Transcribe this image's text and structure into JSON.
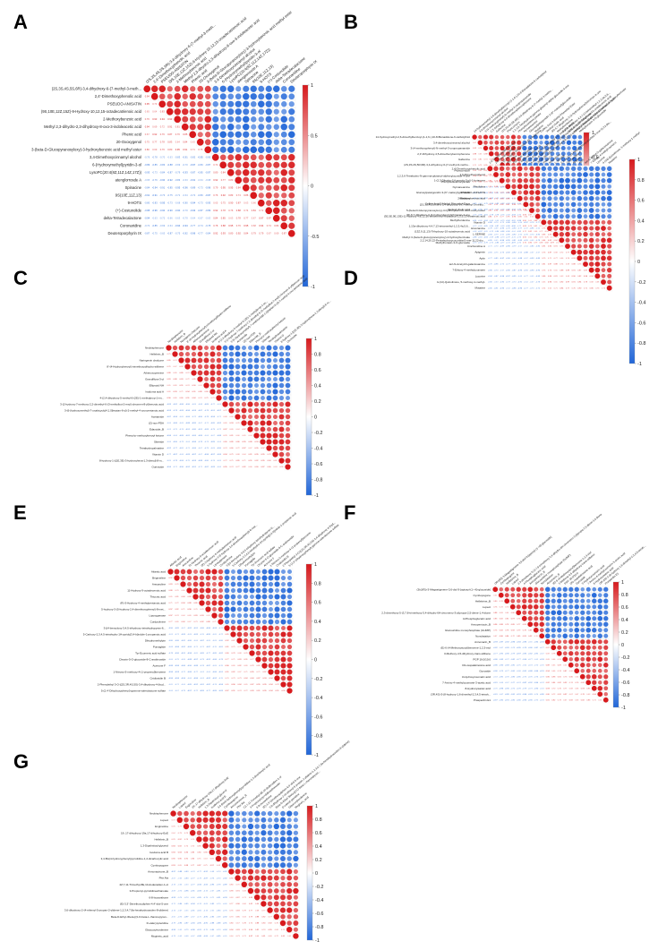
{
  "colors": {
    "negative": "#2166d8",
    "neutral": "#ffffff",
    "positive": "#d7191c"
  },
  "colorbar": {
    "ticks_fine": [
      "1",
      "0.8",
      "0.6",
      "0.4",
      "0.2",
      "0",
      "-0.2",
      "-0.4",
      "-0.6",
      "-0.8",
      "-1"
    ],
    "ticks_coarse": [
      "1",
      "0.5",
      "0",
      "-0.5",
      "-1"
    ]
  },
  "chart_data": [
    {
      "type": "heatmap",
      "panel": "A",
      "labels": [
        "(2S,3S,4S,5S,6R)-3,4-dihydroxy-6-(7-methyl-3-meth...",
        "2,4'-Dimethoxyphenolic acid",
        "PSEUDO-ANISATIN",
        "(9S,10E,12Z,15Z)-9-Hydroxy-10,12,15-octadecatrienoic acid",
        "2-Methoxybenzoic acid",
        "Methyl 2,3-dihydro-2,3-dihydroxy-8-oxo-3-indoleacetic acid",
        "Phenic acid",
        "20-Oxoxygenol",
        "3-(beta-D-Glucopyranosyloxy)-3-hydroxybenzoic acid methyl ester",
        "3,4-Dimethoxycinnamyl alcohol",
        "6-(Hydroxymethyl)pyridin-3-ol",
        "LysoPC(20:4(8Z,11Z,14Z,17Z))",
        "atenglorrosde A",
        "Spinacine",
        "9S(10E,11Z,13)",
        "9-HOTS",
        "(+)-Costunolide",
        "delta-Tetradecalactone",
        "Coronaridine",
        "Deuteroporphyrin IX"
      ]
    },
    {
      "type": "heatmap",
      "panel": "B",
      "labels": [
        "14-hydroxymethyl-2,6-dimethylbenzoyl-(1-1,6-),10-8-Bisnadolone-6-carbolyltriol",
        "3,4-dimethoxycinnamyl alcohol",
        "3-(4-methoxyphenyl)-N-methyl-3-oxopropanamide",
        "2,3'-Dihydroxy-4,5-dimethoxybenzophenone",
        "Gabunine",
        "(2S,3S,4S,5R,6R)-3,4-dihydroxy-6-(7-methyl-3-metho...",
        "Physcomycin",
        "1,2,3,6-Tetrahydro-N-gamma-glutamyl-alpha-glucoside-4-one",
        "Phenylisoselenocyanate",
        "Nymaneamine",
        "Glucosylpelargonidin 3-(6''-malonyl)glucoside",
        "Mutatine",
        "Caffeic Acid 3-Methyl Phenethyl Ester",
        "Vaniloyl cholic acid",
        "(R)-5,7-dihydroxy-3-(4-hydroxybenzyl)chroman-4-one",
        "Methylhordenine",
        "1,13a-dihydroxy-4,4,7,13-tetramethyl-1,2,3,4a,5,6...",
        "(13Z,9,11,13)-Trihydroxy-10-octadecenoic acid",
        "Methyl 3-(beta-D-glucopyranosyloxy)-4-hydroxybenzoate",
        "Methylhorasin-3-O-glucoside"
      ]
    },
    {
      "type": "heatmap",
      "panel": "C",
      "labels": [
        "Neobisphenone",
        "Hellebrin_B",
        "Naringenin chalcone",
        "8'-(4-Hydroxybenzyl)-trimethoxydihydro-stilbene",
        "Athenoxoprenine",
        "Grandiflora-3-ol",
        "Ellipsoid NH",
        "Isodoma acid A",
        "4-(2,4-dihydroxy-5-methyl-6-(2E)-1-methylprop-1-en...",
        "3-(2-hydroxy-7-methoxy-2,2-dimethyl-6-(3-methylbut-2-enyl)-chromen-8-yl)benzoic acid",
        "3-(6-(hydroxymethyl)-7-oxabicyclo[4.1.0]heptan-6-yl)-2-methyl-4-oxo-pentanoic acid",
        "Acetamide",
        "(Z)-non-PDA",
        "Edaxcide_B",
        "Phenyl-p-methoxybenzyl ketone",
        "Siberide",
        "Tetrahydropalmatine",
        "Vitamin D",
        "8-hydroxy-1-[(1E,3E)-3-hydroxyhexa-1,3-dienyl]-8-m...",
        "Ourinicide"
      ]
    },
    {
      "type": "heatmap",
      "panel": "D",
      "labels": [
        "2,4'-Dimethoxyphenolic acid",
        "2,6-Dimethoxyphenol",
        "1-(2,3-Dihydro-1H-pyrrolo-3-yl)-1-butanone",
        "Rhoifoline",
        "PSEUDO-ANISATIN",
        "2-Methoxybenzoic acid",
        "(2S,3S,4S,5R,6R)-3,4-dihydroxy-6-(7-methyl-3-methy...",
        "5-(beta-D-Glucopyranosyloxy)-3-hydroxybenzoic acid methyl ester",
        "(3E,5E,9E,13E)-11-hydroxy-4,8,12,16-tetramethyl-heptadeca-3,5,9,13-tetraenoic acid",
        "Vitamin D",
        "Hinozamine",
        "L-SERINE",
        "2,2,14,20,22-Pentahydroxycucurbita-5-ene-11,22-dio...",
        "Cinchonidine A",
        "Apigenin",
        "Apiin",
        "tert-N-Acetyl-D-galactosamine",
        "7-Ethoxy-4-methylcoumarin",
        "Lycorine",
        "4-(14)-Quinolinone, 5-methoxy-1-methyl-",
        "Mutatine"
      ]
    },
    {
      "type": "heatmap",
      "panel": "E",
      "labels": [
        "Atlantic acid",
        "Brigimeline",
        "Arecaroline",
        "11-Hydroxy-9-octadecenoic acid",
        "Thiocnic acid",
        "(R)-3-Hydroxy-4-methylpentanoic acid",
        "5-hydroxy-3-(5-hydroxy-2,4-dimethoxyphenyl)-8-met...",
        "Lipoxygenase",
        "Cordycilmine",
        "3-[(4-benzyloxy-3,4,5-trihydroxy-tetrahydropyran-6...",
        "5-Carboxy-2,3,4,5-tetrahydro-1H-pyrido[3,4-b]indole-1-propanoic acid",
        "Dihydromethylpin",
        "Pumaglide",
        "Tyr-Ecurneric acid sulfate",
        "Chrysin-5-O-glucoside-8-C-arabinoside",
        "Acenone F",
        "1-Nitroso-5-methoxy-4-(1-propenyl)benzene",
        "Cnidiosidin B",
        "2-Phenylethyl 3-O-[(2S,3R,4S,5S)-3,4-dihydroxy-4-(hyd...",
        "5-(2,4'-Dihydroxyphenyl)-gamma-valerolactone sulfate"
      ]
    },
    {
      "type": "heatmap",
      "panel": "F",
      "labels": [
        "(3bJ(R))-3-Megastigmene-3,6-diol 9-[apiosyl-(1->6)-glucoside]",
        "Cymbopogone",
        "Hellebrine_B",
        "Lupeol",
        "2,3-dimethoxy-5-(3,7,8-trimethoxy-5,4-dihydro-6H-chromeno-3-yl)propa-2,5-diene-1,4-dione",
        "4-Phosphoglucaric acid",
        "Annopentocin_B",
        "Glucouridine monophosphate (GUMP)",
        "Nonulatation",
        "Annonacin_B",
        "(E)-6-(4-Methoxystyryl)benzene-1,2,3-triol",
        "3-Methoxy-4,5-dihydroxy-trans-stilbene",
        "PGP 16:0/10:0",
        "DG-isopalatinosine acid",
        "Gynoside",
        "3-Hydroxycoumaric acid",
        "7-Amino-4-methylcoumarin-3-acetic acid",
        "8-Hydroxyisatoic acid",
        "(3R,4S)-3-(8-hydroxy-1,6-dimethyl-2,3,4,5-tetrah...",
        "Prasperdin E1"
      ]
    },
    {
      "type": "heatmap",
      "panel": "G",
      "labels": [
        "Neobisphenone",
        "Lupeol",
        "Engimoline",
        "19-,17-dihydroxy-19a,17-dihydroxy-EoE",
        "Hellebrin_B",
        "1,3-Dipalmitoyl-glycerol",
        "Isodoma acid B",
        "3,4-Bis(4-hydroxyphenyl)pyrrolidine-1,2-dicarboxylic acid",
        "Cymbopogone",
        "Annonacinone_B",
        "Phe Ala",
        "2Z,7,11-Trimethyl-8E,10-dodecadien-1-ol",
        "3-Propionyl-pyrrolidineethanoate",
        "6-8-Isoxanthone",
        "(E)-3,3'-Dimethoxydiphen-4,4'-diol-5-one",
        "3,6-dihydroxy-2-(4-ethenyl-5-propan-2-ylidene-1,2,3,4,7,8a-hexahydroazulen-8-ylidene)",
        "Beta-D-Ethyl-3beta-[(3-O-beta-L-rhamnopyran...",
        "D-valeryl-pteridine",
        "Glaucoxyhordenine",
        "Mugineic_acid"
      ]
    }
  ],
  "panel_letters": [
    "A",
    "B",
    "C",
    "D",
    "E",
    "F",
    "G"
  ]
}
